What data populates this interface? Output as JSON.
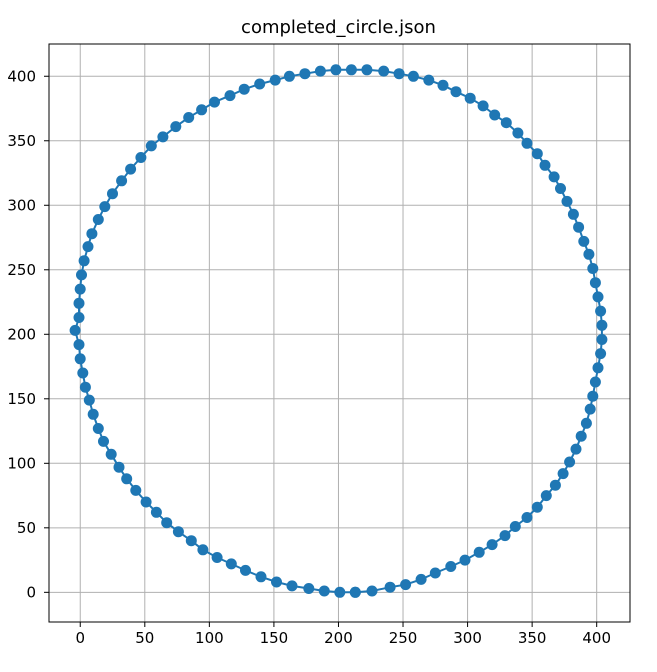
{
  "chart_data": {
    "type": "line",
    "title": "completed_circle.json",
    "xlabel": "",
    "ylabel": "",
    "xlim": [
      -24.2,
      425.8
    ],
    "ylim": [
      425,
      -23
    ],
    "y_inverted": true,
    "grid": true,
    "xticks": [
      0,
      50,
      100,
      150,
      200,
      250,
      300,
      350,
      400
    ],
    "yticks": [
      0,
      50,
      100,
      150,
      200,
      250,
      300,
      350,
      400
    ],
    "colors": {
      "series": "#1f77b4",
      "grid": "#b0b0b0",
      "axes": "#000000",
      "background": "#ffffff"
    },
    "series": [
      {
        "marker": "circle",
        "x": [
          213,
          226,
          240,
          252,
          264,
          275,
          287,
          298,
          309,
          319,
          329,
          337,
          346,
          354,
          361,
          368,
          374,
          379,
          384,
          388,
          392,
          395,
          397,
          399,
          401,
          403,
          404,
          404,
          403,
          401,
          399,
          397,
          394,
          390,
          386,
          382,
          377,
          372,
          367,
          360,
          354,
          346,
          339,
          330,
          321,
          312,
          302,
          291,
          281,
          270,
          258,
          247,
          235,
          222,
          210,
          198,
          186,
          174,
          162,
          151,
          139,
          127,
          116,
          104,
          94,
          84,
          74,
          64,
          55,
          47,
          39,
          32,
          25,
          19,
          14,
          9,
          6,
          3,
          1,
          0,
          -1,
          -1,
          -4,
          -1,
          0,
          2,
          4,
          7,
          10,
          14,
          18,
          24,
          30,
          36,
          43,
          51,
          59,
          67,
          76,
          86,
          95,
          106,
          117,
          128,
          140,
          152,
          164,
          177,
          189,
          201,
          213
        ],
        "y": [
          0,
          1,
          4,
          6,
          10,
          15,
          20,
          25,
          31,
          37,
          44,
          51,
          58,
          66,
          75,
          83,
          92,
          101,
          111,
          121,
          131,
          142,
          152,
          163,
          174,
          185,
          196,
          207,
          218,
          229,
          240,
          251,
          262,
          272,
          283,
          293,
          303,
          313,
          322,
          331,
          340,
          348,
          356,
          364,
          370,
          377,
          383,
          388,
          393,
          397,
          400,
          402,
          404,
          405,
          405,
          405,
          404,
          402,
          400,
          397,
          394,
          390,
          385,
          380,
          374,
          368,
          361,
          353,
          346,
          337,
          328,
          319,
          309,
          299,
          289,
          278,
          268,
          257,
          246,
          235,
          224,
          213,
          203,
          192,
          181,
          170,
          159,
          149,
          138,
          127,
          117,
          107,
          97,
          88,
          79,
          70,
          62,
          54,
          47,
          40,
          33,
          27,
          22,
          17,
          12,
          8,
          5,
          3,
          1,
          0,
          0
        ]
      }
    ]
  }
}
